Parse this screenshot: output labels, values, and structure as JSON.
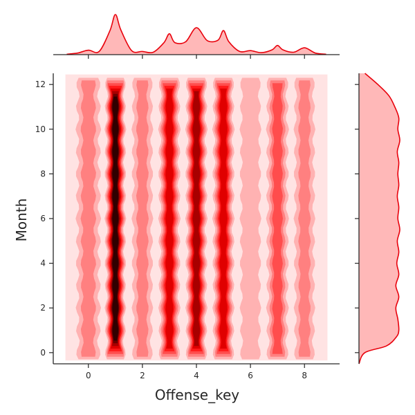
{
  "chart_data": {
    "type": "heatmap",
    "subtype": "joint-kde",
    "title": "",
    "xlabel": "Offense_key",
    "ylabel": "Month",
    "xlim": [
      -1.3,
      9.3
    ],
    "ylim": [
      -0.5,
      12.5
    ],
    "x_ticks": [
      0,
      2,
      4,
      6,
      8
    ],
    "y_ticks": [
      0,
      2,
      4,
      6,
      8,
      10,
      12
    ],
    "grid": false,
    "legend": "none",
    "colors": {
      "line": "#e8000b",
      "fill": "#ffb8b8",
      "levels": [
        "#ffe3e3",
        "#ffb2b2",
        "#ff8080",
        "#ff4d4d",
        "#ff1a1a",
        "#e00000",
        "#a80000",
        "#6a0000",
        "#300000"
      ],
      "axis": "#262626"
    },
    "series": [
      {
        "name": "Offense_key",
        "kind": "x-marginal-kde",
        "x": [
          -0.8,
          -0.4,
          0,
          0.4,
          0.8,
          1,
          1.2,
          1.6,
          2,
          2.4,
          2.8,
          3,
          3.2,
          3.6,
          4,
          4.4,
          4.8,
          5,
          5.2,
          5.6,
          6,
          6.4,
          6.8,
          7,
          7.2,
          7.6,
          8,
          8.4,
          8.8
        ],
        "density": [
          0.01,
          0.04,
          0.11,
          0.08,
          0.6,
          1.0,
          0.62,
          0.1,
          0.08,
          0.06,
          0.3,
          0.52,
          0.3,
          0.32,
          0.67,
          0.35,
          0.36,
          0.6,
          0.32,
          0.08,
          0.1,
          0.05,
          0.12,
          0.23,
          0.12,
          0.06,
          0.17,
          0.04,
          0.01
        ]
      },
      {
        "name": "Month",
        "kind": "y-marginal-kde",
        "y": [
          -0.5,
          0,
          0.3,
          0.7,
          1,
          1.5,
          2,
          2.5,
          3,
          3.5,
          4,
          4.5,
          5,
          5.5,
          6,
          6.5,
          7,
          7.5,
          8,
          8.5,
          9,
          9.5,
          10,
          10.5,
          11,
          11.5,
          12,
          12.5
        ],
        "density": [
          0.0,
          0.12,
          0.55,
          0.75,
          0.8,
          0.78,
          0.74,
          0.8,
          0.74,
          0.8,
          0.76,
          0.8,
          0.77,
          0.82,
          0.78,
          0.8,
          0.77,
          0.8,
          0.78,
          0.8,
          0.77,
          0.82,
          0.78,
          0.8,
          0.72,
          0.6,
          0.38,
          0.12
        ]
      }
    ],
    "column_peaks": [
      {
        "x": 0,
        "peak": 0.22
      },
      {
        "x": 1,
        "peak": 1.0
      },
      {
        "x": 2,
        "peak": 0.2
      },
      {
        "x": 3,
        "peak": 0.58
      },
      {
        "x": 4,
        "peak": 0.7
      },
      {
        "x": 5,
        "peak": 0.62
      },
      {
        "x": 6,
        "peak": 0.18
      },
      {
        "x": 7,
        "peak": 0.35
      },
      {
        "x": 8,
        "peak": 0.24
      }
    ],
    "column_width": [
      0.22,
      0.16,
      0.16,
      0.17,
      0.17,
      0.17,
      0.16,
      0.18,
      0.16
    ],
    "month_pattern": [
      0.55,
      0.72,
      0.86,
      0.74,
      0.88,
      0.8,
      0.92,
      0.82,
      0.9,
      0.8,
      0.95,
      0.76,
      0.6
    ]
  }
}
